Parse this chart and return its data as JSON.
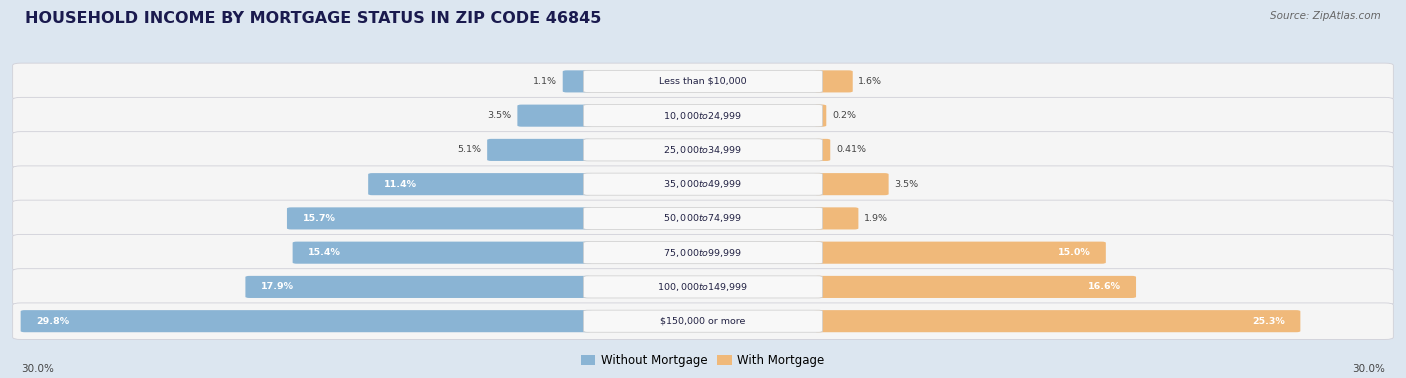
{
  "title": "HOUSEHOLD INCOME BY MORTGAGE STATUS IN ZIP CODE 46845",
  "source": "Source: ZipAtlas.com",
  "categories": [
    "Less than $10,000",
    "$10,000 to $24,999",
    "$25,000 to $34,999",
    "$35,000 to $49,999",
    "$50,000 to $74,999",
    "$75,000 to $99,999",
    "$100,000 to $149,999",
    "$150,000 or more"
  ],
  "without_mortgage": [
    1.1,
    3.5,
    5.1,
    11.4,
    15.7,
    15.4,
    17.9,
    29.8
  ],
  "with_mortgage": [
    1.6,
    0.2,
    0.41,
    3.5,
    1.9,
    15.0,
    16.6,
    25.3
  ],
  "axis_max": 30.0,
  "color_without": "#8ab4d4",
  "color_with": "#f0b97a",
  "bg_color": "#dce6f0",
  "row_bg": "#f5f5f5",
  "row_border": "#d0d0d8",
  "label_box_bg": "#f8f8f8",
  "label_box_border": "#cccccc",
  "text_dark": "#222244",
  "text_pct": "#444444",
  "text_white": "#ffffff",
  "legend_label_without": "Without Mortgage",
  "legend_label_with": "With Mortgage",
  "title_color": "#1a1a4e",
  "source_color": "#666666"
}
